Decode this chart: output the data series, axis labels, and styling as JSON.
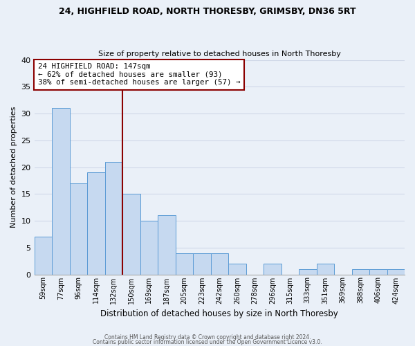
{
  "title1": "24, HIGHFIELD ROAD, NORTH THORESBY, GRIMSBY, DN36 5RT",
  "title2": "Size of property relative to detached houses in North Thoresby",
  "xlabel": "Distribution of detached houses by size in North Thoresby",
  "ylabel": "Number of detached properties",
  "bin_labels": [
    "59sqm",
    "77sqm",
    "96sqm",
    "114sqm",
    "132sqm",
    "150sqm",
    "169sqm",
    "187sqm",
    "205sqm",
    "223sqm",
    "242sqm",
    "260sqm",
    "278sqm",
    "296sqm",
    "315sqm",
    "333sqm",
    "351sqm",
    "369sqm",
    "388sqm",
    "406sqm",
    "424sqm"
  ],
  "bar_values": [
    7,
    31,
    17,
    19,
    21,
    15,
    10,
    11,
    4,
    4,
    4,
    2,
    0,
    2,
    0,
    1,
    2,
    0,
    1,
    1,
    1
  ],
  "bar_color": "#c6d9f0",
  "bar_edge_color": "#5b9bd5",
  "vline_color": "#8b0000",
  "annotation_title": "24 HIGHFIELD ROAD: 147sqm",
  "annotation_line1": "← 62% of detached houses are smaller (93)",
  "annotation_line2": "38% of semi-detached houses are larger (57) →",
  "annotation_box_color": "#ffffff",
  "annotation_box_edge_color": "#8b0000",
  "ylim": [
    0,
    40
  ],
  "yticks": [
    0,
    5,
    10,
    15,
    20,
    25,
    30,
    35,
    40
  ],
  "footer1": "Contains HM Land Registry data © Crown copyright and database right 2024.",
  "footer2": "Contains public sector information licensed under the Open Government Licence v3.0.",
  "grid_color": "#d0d8e8",
  "background_color": "#eaf0f8"
}
